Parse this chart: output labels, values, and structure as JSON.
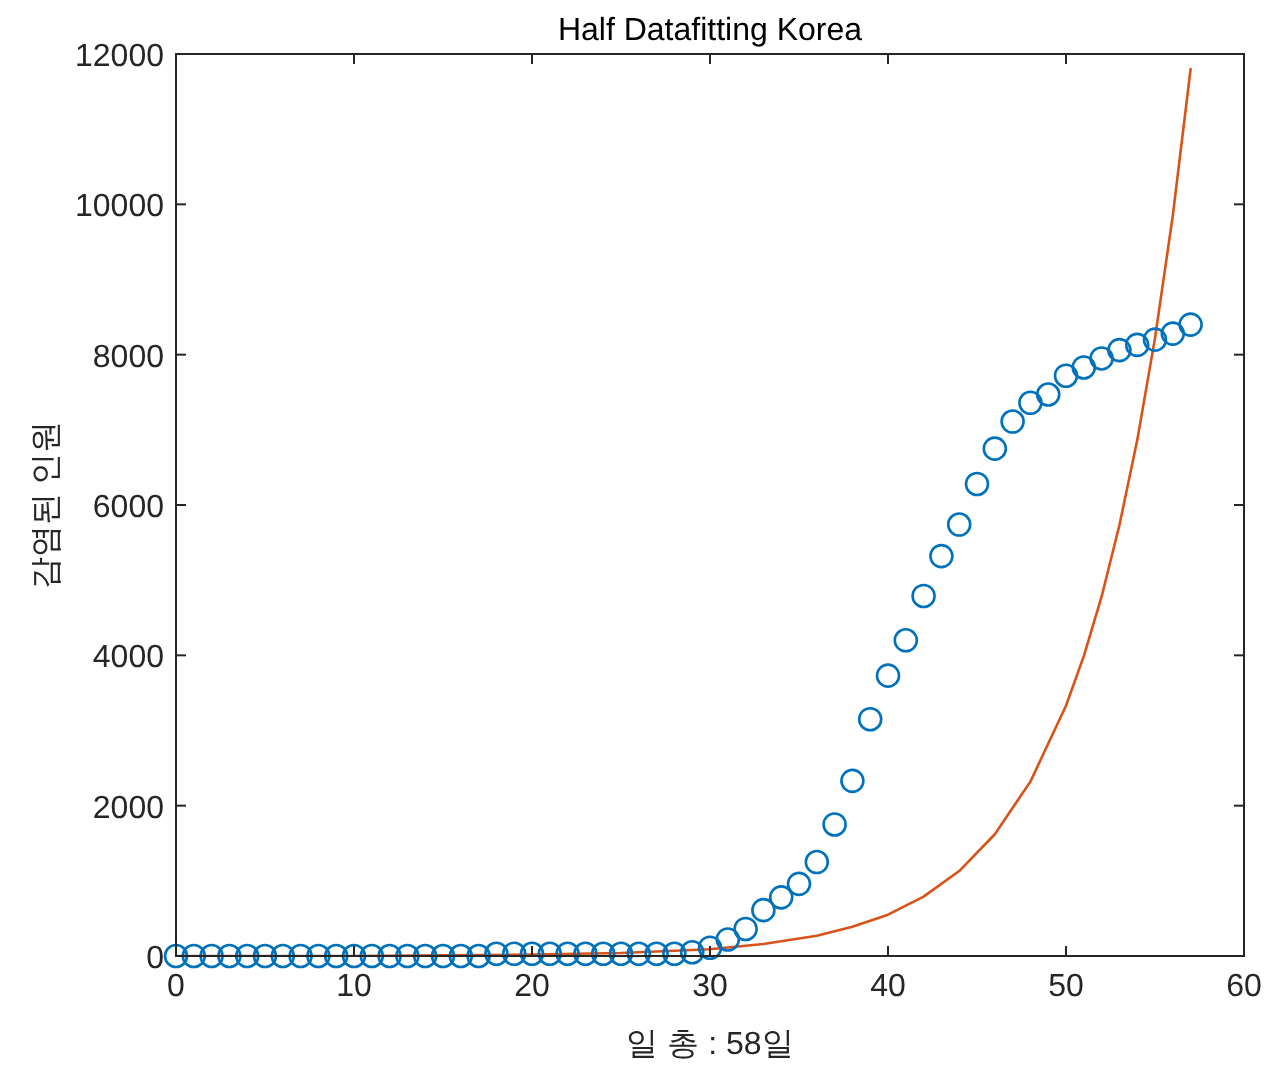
{
  "chart_data": {
    "type": "scatter",
    "title": "Half Datafitting Korea",
    "xlabel": "일 총 : 58일",
    "ylabel": "감염된 인원",
    "xlim": [
      0,
      60
    ],
    "xticks": [
      0,
      10,
      20,
      30,
      40,
      50,
      60
    ],
    "ylim": [
      0,
      12000
    ],
    "yticks": [
      0,
      2000,
      4000,
      6000,
      8000,
      10000,
      12000
    ],
    "grid": false,
    "series": [
      {
        "marker": "circle",
        "color": "#0072bd",
        "x": [
          0,
          1,
          2,
          3,
          4,
          5,
          6,
          7,
          8,
          9,
          10,
          11,
          12,
          13,
          14,
          15,
          16,
          17,
          18,
          19,
          20,
          21,
          22,
          23,
          24,
          25,
          26,
          27,
          28,
          29,
          30,
          31,
          32,
          33,
          34,
          35,
          36,
          37,
          38,
          39,
          40,
          41,
          42,
          43,
          44,
          45,
          46,
          47,
          48,
          49,
          50,
          51,
          52,
          53,
          54,
          55,
          56,
          57
        ],
        "values": [
          0,
          0,
          0,
          0,
          0,
          0,
          0,
          0,
          0,
          0,
          0,
          0,
          0,
          0,
          0,
          0,
          0,
          0,
          30,
          30,
          30,
          30,
          30,
          30,
          30,
          30,
          30,
          30,
          30,
          50,
          110,
          220,
          360,
          610,
          780,
          960,
          1250,
          1750,
          2330,
          3150,
          3730,
          4200,
          4790,
          5320,
          5740,
          6280,
          6750,
          7110,
          7360,
          7470,
          7720,
          7830,
          7950,
          8060,
          8130,
          8200,
          8280,
          8400
        ]
      },
      {
        "type": "line",
        "marker": "none",
        "line_style": "solid",
        "color": "#d95319",
        "x": [
          0,
          5,
          10,
          15,
          20,
          25,
          30,
          33,
          36,
          38,
          40,
          42,
          44,
          46,
          48,
          50,
          51,
          52,
          53,
          54,
          55,
          56,
          57
        ],
        "values": [
          0,
          0,
          0,
          10,
          20,
          40,
          90,
          160,
          270,
          390,
          550,
          790,
          1130,
          1620,
          2320,
          3330,
          3990,
          4780,
          5730,
          6860,
          8220,
          9850,
          11800
        ]
      }
    ]
  }
}
